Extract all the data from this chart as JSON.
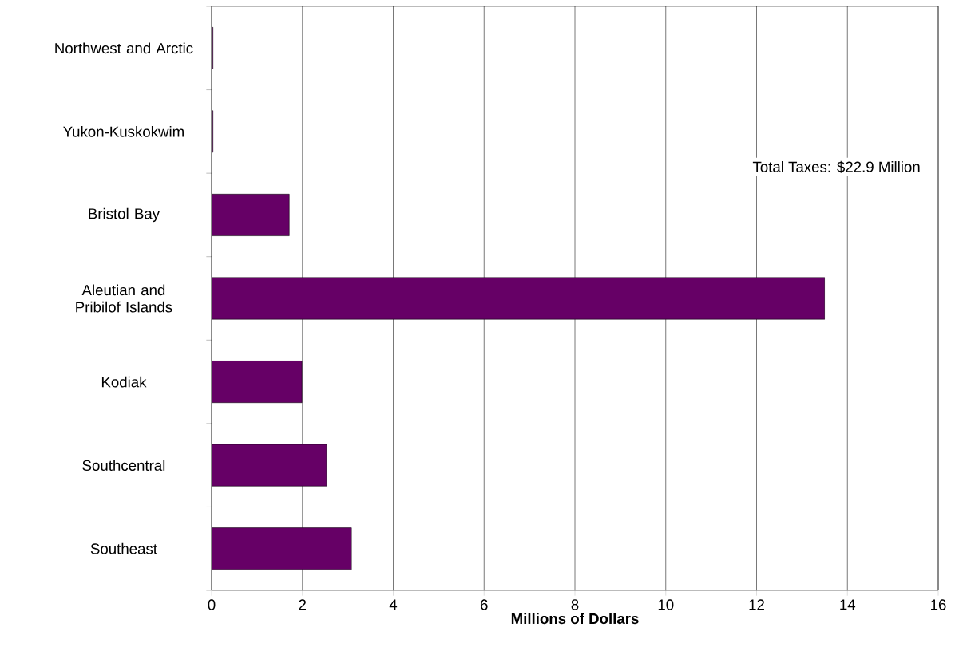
{
  "chart_data": {
    "type": "bar",
    "orientation": "horizontal",
    "xlabel": "Millions of Dollars",
    "categories": [
      "Northwest and Arctic",
      "Yukon-Kuskokwim",
      "Bristol Bay",
      "Aleutian and Pribilof Islands",
      "Kodiak",
      "Southcentral",
      "Southeast"
    ],
    "values": [
      0.03,
      0.03,
      1.71,
      13.5,
      1.99,
      2.53,
      3.08
    ],
    "color": "#660066",
    "xlim": [
      0,
      16
    ],
    "xticks": [
      0,
      2,
      4,
      6,
      8,
      10,
      12,
      14,
      16
    ],
    "grid": "x",
    "annotations": [
      "Total Taxes: $22.9 Million"
    ]
  }
}
